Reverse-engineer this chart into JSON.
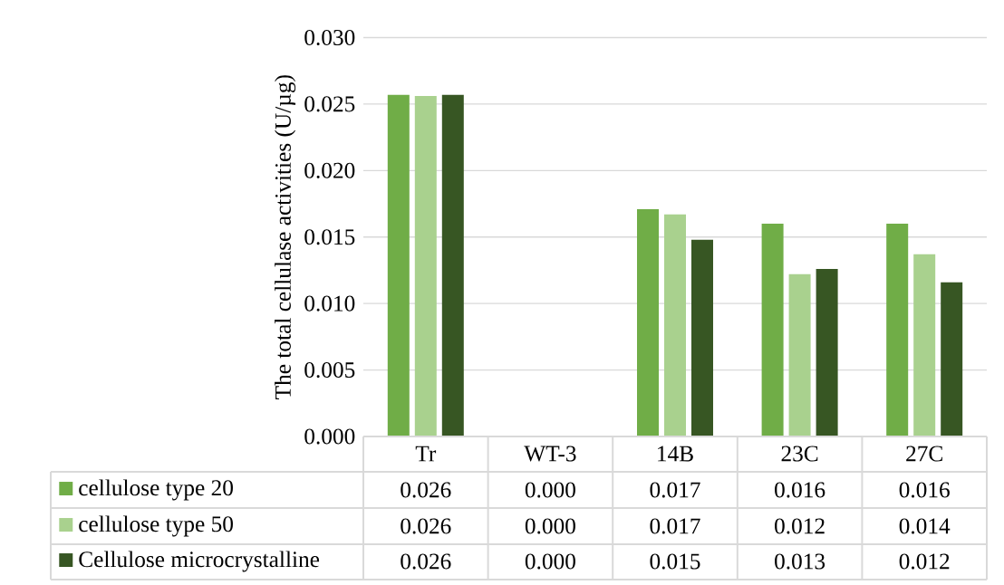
{
  "chart_data": {
    "type": "bar",
    "ylabel": "The total cellulase activities  (U/µg)",
    "categories": [
      "Tr",
      "WT-3",
      "14B",
      "23C",
      "27C"
    ],
    "series": [
      {
        "name": "cellulose type 20",
        "color": "#70ad47",
        "values": [
          0.0257,
          0,
          0.0171,
          0.016,
          0.016
        ],
        "value_labels": [
          "0.026",
          "0.000",
          "0.017",
          "0.016",
          "0.016"
        ]
      },
      {
        "name": "cellulose type 50",
        "color": "#a9d18e",
        "values": [
          0.0256,
          0,
          0.0167,
          0.0122,
          0.0137
        ],
        "value_labels": [
          "0.026",
          "0.000",
          "0.017",
          "0.012",
          "0.014"
        ]
      },
      {
        "name": "Cellulose microcrystalline",
        "color": "#375623",
        "values": [
          0.0257,
          0,
          0.0148,
          0.0126,
          0.0116
        ],
        "value_labels": [
          "0.026",
          "0.000",
          "0.015",
          "0.013",
          "0.012"
        ]
      }
    ],
    "ylim": [
      0,
      0.03
    ],
    "yticks": [
      {
        "value": 0,
        "label": "0.000"
      },
      {
        "value": 0.005,
        "label": "0.005"
      },
      {
        "value": 0.01,
        "label": "0.010"
      },
      {
        "value": 0.015,
        "label": "0.015"
      },
      {
        "value": 0.02,
        "label": "0.020"
      },
      {
        "value": 0.025,
        "label": "0.025"
      },
      {
        "value": 0.03,
        "label": "0.030"
      }
    ],
    "grid": "y",
    "legend": "bottom"
  }
}
